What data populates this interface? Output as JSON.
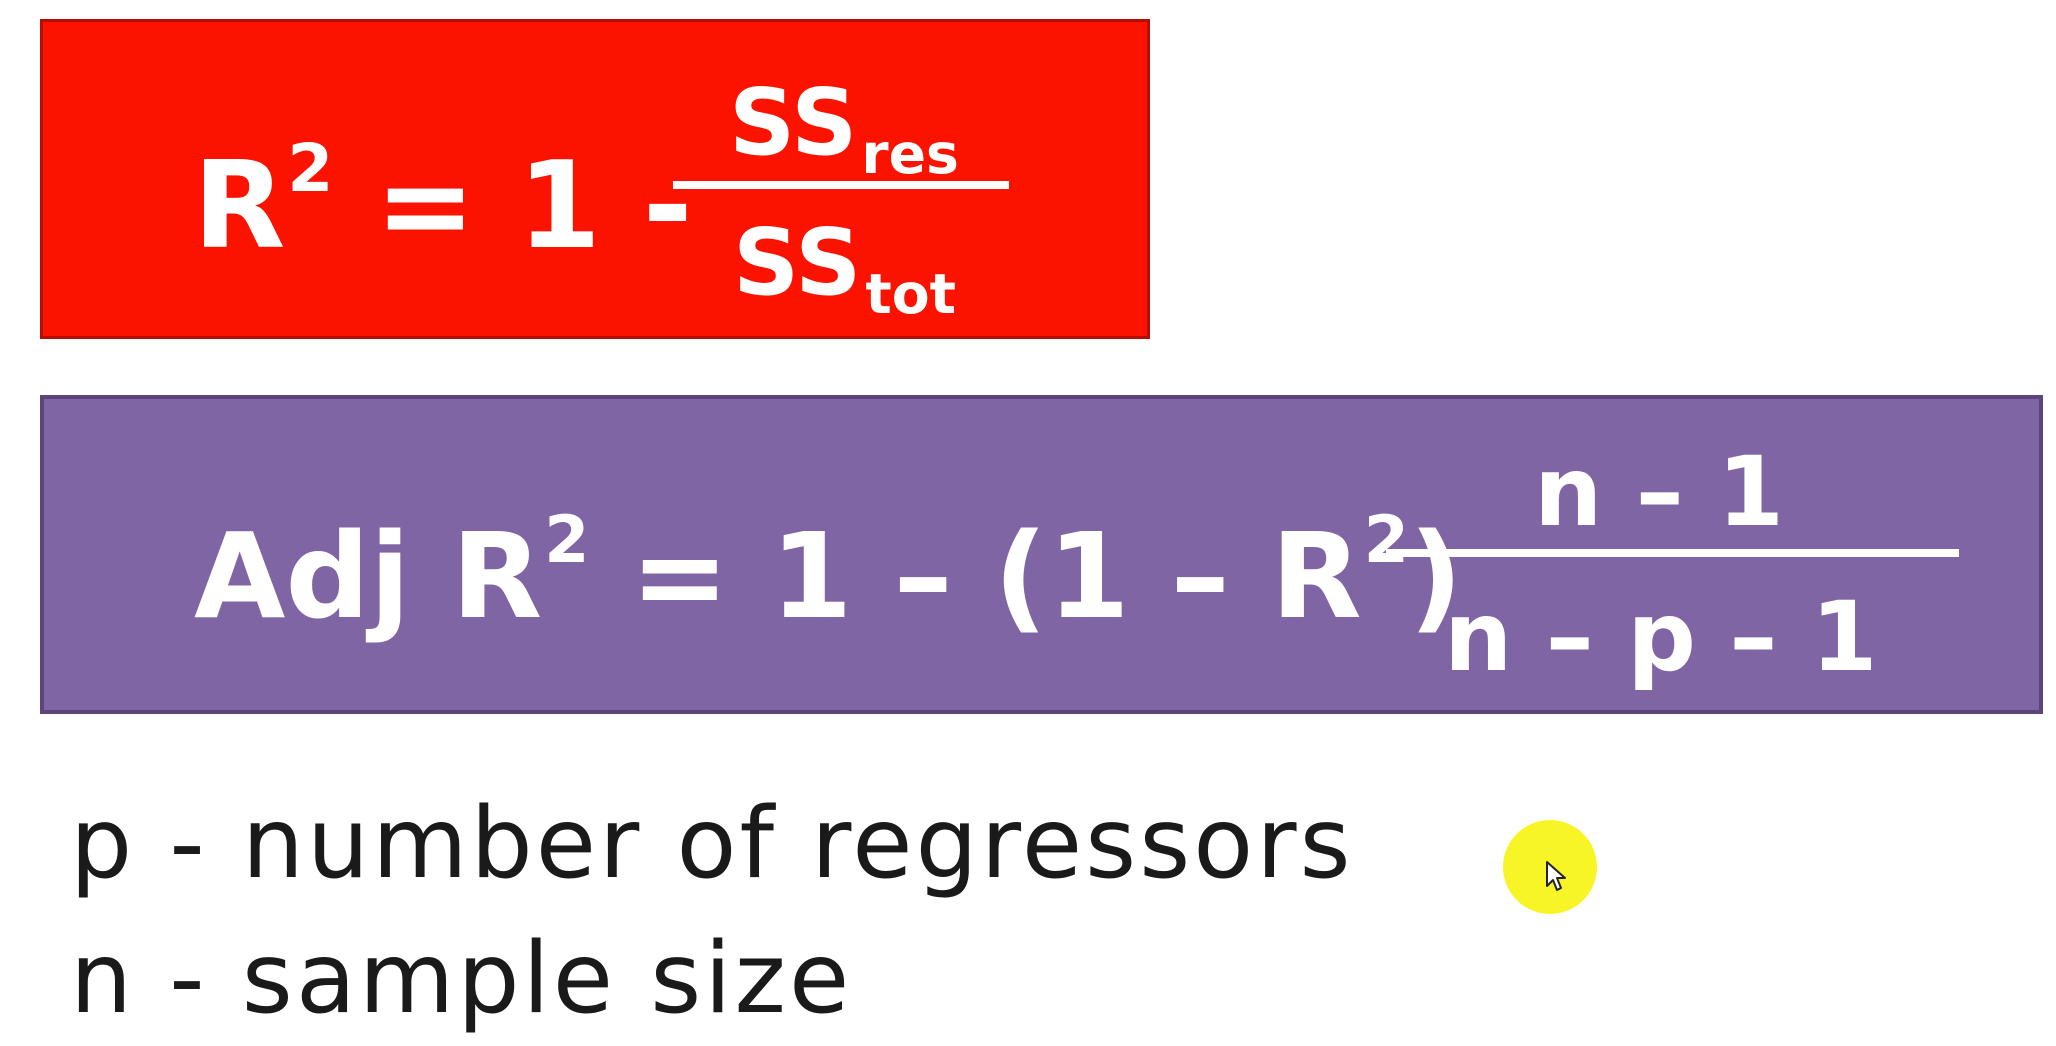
{
  "r2_formula": {
    "lhs_base": "R",
    "lhs_exp": "2",
    "lhs_rest": " = 1 - ",
    "numerator_base": "SS",
    "numerator_sub": "res",
    "denominator_base": "SS",
    "denominator_sub": "tot",
    "box_color": "#fb1300"
  },
  "adj_formula": {
    "lhs_label": "Adj R",
    "lhs_exp": "2",
    "middle": " = 1 – (1 – R",
    "middle_exp": "2",
    "close_paren": ")",
    "numerator": "n – 1",
    "denominator": "n – p – 1",
    "box_color": "#7f65a3"
  },
  "definitions": [
    "p - number of regressors",
    "n - sample size"
  ],
  "cursor": {
    "highlight_color": "#f7f300",
    "icon": "pointer-arrow-icon"
  }
}
